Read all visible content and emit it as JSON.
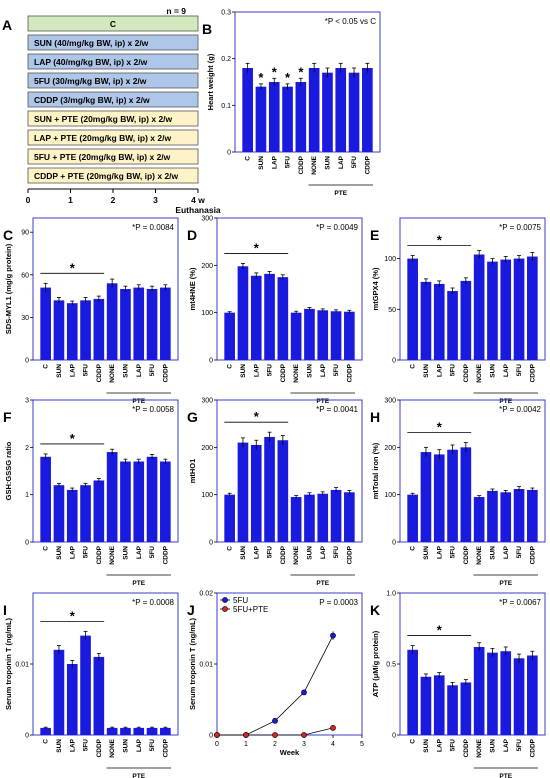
{
  "colors": {
    "bar": "#1a1adf",
    "border": "#3b3bd6",
    "box_blue": "#aec6e8",
    "box_yellow": "#fdf3c7",
    "box_green": "#d3e8bd",
    "red": "#dd2222"
  },
  "panel_a": {
    "label": "A",
    "n_label": "n = 9",
    "protocols": [
      {
        "text": "C",
        "color": "green"
      },
      {
        "text": "SUN (40/mg/kg BW, ip) x 2/w",
        "color": "blue"
      },
      {
        "text": "LAP (40/mg/kg BW, ip) x 2/w",
        "color": "blue"
      },
      {
        "text": "5FU (30/mg/kg BW, ip) x 2/w",
        "color": "blue"
      },
      {
        "text": "CDDP (3/mg/kg BW,  ip) x 2/w",
        "color": "blue"
      },
      {
        "text": "SUN + PTE (20mg/kg BW, ip) x 2/w",
        "color": "yellow"
      },
      {
        "text": "LAP + PTE (20mg/kg BW, ip) x 2/w",
        "color": "yellow"
      },
      {
        "text": "5FU + PTE (20mg/kg BW, ip) x 2/w",
        "color": "yellow"
      },
      {
        "text": "CDDP + PTE (20mg/kg BW, ip) x 2/w",
        "color": "yellow"
      }
    ],
    "timeline_ticks": [
      "0",
      "1",
      "2",
      "3",
      "4 w"
    ],
    "end_label": "Euthanasia"
  },
  "chart_data": [
    {
      "panel": "B",
      "type": "bar",
      "ylabel": "Heart weight (g)",
      "ylim": [
        0,
        0.3
      ],
      "yticks": [
        0,
        0.1,
        0.2,
        0.3
      ],
      "yticklabels": [
        "0",
        "0.1",
        "0.2",
        "0.3"
      ],
      "categories": [
        "C",
        "SUN",
        "LAP",
        "5FU",
        "CDDP",
        "NONE",
        "SUN",
        "LAP",
        "5FU",
        "CDDP"
      ],
      "values": [
        0.18,
        0.14,
        0.15,
        0.14,
        0.15,
        0.18,
        0.17,
        0.18,
        0.17,
        0.18
      ],
      "errors": [
        0.01,
        0.006,
        0.008,
        0.006,
        0.008,
        0.01,
        0.01,
        0.01,
        0.01,
        0.01
      ],
      "stars_on": [
        1,
        2,
        3,
        4
      ],
      "star_text": "*",
      "annotation": "*P < 0.05 vs C",
      "group_label": "PTE"
    },
    {
      "panel": "C",
      "type": "bar",
      "ylabel": "SDS-MYL1 (mg/g protein)",
      "ylim": [
        0,
        100
      ],
      "yticks": [
        0,
        30,
        60,
        90
      ],
      "yticklabels": [
        "0",
        "30",
        "60",
        "90"
      ],
      "categories": [
        "C",
        "SUN",
        "LAP",
        "5FU",
        "CDDP",
        "NONE",
        "SUN",
        "LAP",
        "5FU",
        "CDDP"
      ],
      "values": [
        51,
        42,
        40,
        42,
        43,
        54,
        50,
        51,
        50,
        51
      ],
      "errors": [
        3,
        2,
        1.5,
        2,
        2,
        3,
        2,
        2,
        2,
        2
      ],
      "bracket": [
        0,
        4
      ],
      "star_text": "*",
      "annotation": "*P = 0.0084",
      "group_label": "PTE"
    },
    {
      "panel": "D",
      "type": "bar",
      "ylabel": "mt4HNE (%)",
      "ylim": [
        0,
        300
      ],
      "yticks": [
        0,
        100,
        200,
        300
      ],
      "yticklabels": [
        "0",
        "100",
        "200",
        "300"
      ],
      "categories": [
        "C",
        "SUN",
        "LAP",
        "5FU",
        "CDDP",
        "NONE",
        "SUN",
        "LAP",
        "5FU",
        "CDDP"
      ],
      "values": [
        100,
        198,
        178,
        182,
        175,
        100,
        108,
        105,
        103,
        102
      ],
      "errors": [
        2,
        6,
        6,
        5,
        5,
        3,
        3,
        3,
        3,
        3
      ],
      "bracket": [
        0,
        4
      ],
      "star_text": "*",
      "annotation": "*P = 0.0049",
      "group_label": "PTE"
    },
    {
      "panel": "E",
      "type": "bar",
      "ylabel": "mtGPX4 (%)",
      "ylim": [
        0,
        140
      ],
      "yticks": [
        0,
        50,
        100
      ],
      "yticklabels": [
        "0",
        "50",
        "100"
      ],
      "categories": [
        "C",
        "SUN",
        "LAP",
        "5FU",
        "CDDP",
        "NONE",
        "SUN",
        "LAP",
        "5FU",
        "CDDP"
      ],
      "values": [
        100,
        77,
        75,
        68,
        78,
        104,
        97,
        99,
        100,
        102
      ],
      "errors": [
        3,
        3,
        3,
        3,
        3,
        4,
        3,
        3,
        3,
        4
      ],
      "bracket": [
        0,
        4
      ],
      "star_text": "*",
      "annotation": "*P = 0.0075",
      "group_label": "PTE"
    },
    {
      "panel": "F",
      "type": "bar",
      "ylabel": "GSH:GSSG ratio",
      "ylim": [
        0,
        3
      ],
      "yticks": [
        0,
        1,
        2,
        3
      ],
      "yticklabels": [
        "0",
        "1",
        "2",
        "3"
      ],
      "categories": [
        "C",
        "SUN",
        "LAP",
        "5FU",
        "CDDP",
        "NONE",
        "SUN",
        "LAP",
        "5FU",
        "CDDP"
      ],
      "values": [
        1.8,
        1.2,
        1.1,
        1.2,
        1.3,
        1.9,
        1.7,
        1.7,
        1.8,
        1.7
      ],
      "errors": [
        0.06,
        0.04,
        0.04,
        0.04,
        0.04,
        0.06,
        0.05,
        0.05,
        0.05,
        0.05
      ],
      "bracket": [
        0,
        4
      ],
      "star_text": "*",
      "annotation": "*P = 0.0058",
      "group_label": "PTE"
    },
    {
      "panel": "G",
      "type": "bar",
      "ylabel": "mtHO1",
      "ylim": [
        0,
        300
      ],
      "yticks": [
        0,
        100,
        200,
        300
      ],
      "yticklabels": [
        "0",
        "100",
        "200",
        "300"
      ],
      "categories": [
        "C",
        "SUN",
        "LAP",
        "5FU",
        "CDDP",
        "NONE",
        "SUN",
        "LAP",
        "5FU",
        "CDDP"
      ],
      "values": [
        100,
        210,
        205,
        222,
        215,
        95,
        100,
        102,
        110,
        105
      ],
      "errors": [
        3,
        10,
        10,
        10,
        10,
        3,
        4,
        4,
        5,
        4
      ],
      "bracket": [
        0,
        4
      ],
      "star_text": "*",
      "annotation": "*P = 0.0041",
      "group_label": "PTE"
    },
    {
      "panel": "H",
      "type": "bar",
      "ylabel": "mtTotal iron (%)",
      "ylim": [
        0,
        300
      ],
      "yticks": [
        0,
        100,
        200,
        300
      ],
      "yticklabels": [
        "0",
        "100",
        "200",
        "300"
      ],
      "categories": [
        "C",
        "SUN",
        "LAP",
        "5FU",
        "CDDP",
        "NONE",
        "SUN",
        "LAP",
        "5FU",
        "CDDP"
      ],
      "values": [
        100,
        190,
        185,
        195,
        200,
        95,
        108,
        105,
        112,
        110
      ],
      "errors": [
        3,
        10,
        10,
        10,
        10,
        3,
        4,
        4,
        5,
        4
      ],
      "bracket": [
        0,
        4
      ],
      "star_text": "*",
      "annotation": "*P = 0.0042",
      "group_label": "PTE"
    },
    {
      "panel": "I",
      "type": "bar",
      "ylabel": "Serum troponin T (ng/mL)",
      "ylim": [
        0,
        0.02
      ],
      "yticks": [
        0,
        0.01
      ],
      "yticklabels": [
        "0",
        "0.01"
      ],
      "categories": [
        "C",
        "SUN",
        "LAP",
        "5FU",
        "CDDP",
        "NONE",
        "SUN",
        "LAP",
        "5FU",
        "CDDP"
      ],
      "values": [
        0.001,
        0.012,
        0.01,
        0.014,
        0.011,
        0.001,
        0.001,
        0.001,
        0.001,
        0.001
      ],
      "errors": [
        0.0001,
        0.0006,
        0.0005,
        0.0006,
        0.0005,
        0.0001,
        0.0001,
        0.0001,
        0.0001,
        0.0001
      ],
      "bracket": [
        0,
        4
      ],
      "star_text": "*",
      "annotation": "*P = 0.0008",
      "group_label": "PTE"
    },
    {
      "panel": "J",
      "type": "line",
      "ylabel": "Serum troponin T (ng/mL)",
      "xlabel": "Week",
      "xlim": [
        0,
        5
      ],
      "ylim": [
        0,
        0.02
      ],
      "xticks": [
        0,
        1,
        2,
        3,
        4,
        5
      ],
      "yticks": [
        0,
        0.01,
        0.02
      ],
      "yticklabels": [
        "0",
        "0.01",
        "0.02"
      ],
      "annotation": "P = 0.0003",
      "series": [
        {
          "name": "5FU",
          "color": "#1a1adf",
          "x": [
            0,
            1,
            2,
            3,
            4
          ],
          "y": [
            0,
            0,
            0.002,
            0.006,
            0.014
          ],
          "errors": [
            0,
            0,
            0.0002,
            0.0003,
            0.0006
          ]
        },
        {
          "name": "5FU+PTE",
          "color": "#dd2222",
          "x": [
            0,
            1,
            2,
            3,
            4
          ],
          "y": [
            0,
            0,
            0,
            0,
            0.001
          ],
          "errors": [
            0,
            0,
            0,
            0,
            0.0001
          ]
        }
      ]
    },
    {
      "panel": "K",
      "type": "bar",
      "ylabel": "ATP (μM/g protein)",
      "ylim": [
        0,
        1.0
      ],
      "yticks": [
        0,
        0.5,
        1.0
      ],
      "yticklabels": [
        "0",
        "0.5",
        "1.0"
      ],
      "categories": [
        "C",
        "SUN",
        "LAP",
        "5FU",
        "CDDP",
        "NONE",
        "SUN",
        "LAP",
        "5FU",
        "CDDP"
      ],
      "values": [
        0.6,
        0.41,
        0.42,
        0.35,
        0.37,
        0.62,
        0.58,
        0.59,
        0.54,
        0.56
      ],
      "errors": [
        0.03,
        0.02,
        0.02,
        0.02,
        0.02,
        0.03,
        0.03,
        0.03,
        0.03,
        0.03
      ],
      "bracket": [
        0,
        4
      ],
      "star_text": "*",
      "annotation": "*P = 0.0067",
      "group_label": "PTE"
    }
  ]
}
